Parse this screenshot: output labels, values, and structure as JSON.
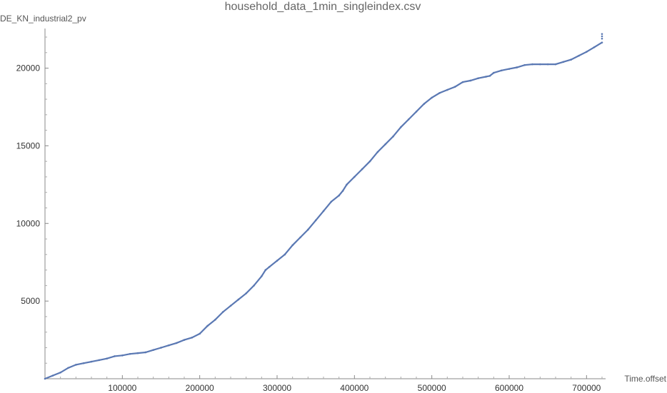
{
  "chart_data": {
    "type": "scatter",
    "title": "household_data_1min_singleindex.csv",
    "xlabel": "Time.offset",
    "ylabel": "DE_KN_industrial2_pv",
    "xlim": [
      0,
      720000
    ],
    "ylim": [
      0,
      22000
    ],
    "xticks": [
      {
        "value": 100000,
        "label": "100000"
      },
      {
        "value": 200000,
        "label": "200000"
      },
      {
        "value": 300000,
        "label": "300000"
      },
      {
        "value": 400000,
        "label": "400000"
      },
      {
        "value": 500000,
        "label": "500000"
      },
      {
        "value": 600000,
        "label": "600000"
      },
      {
        "value": 700000,
        "label": "700000"
      }
    ],
    "yticks": [
      {
        "value": 5000,
        "label": "5000"
      },
      {
        "value": 10000,
        "label": "10000"
      },
      {
        "value": 15000,
        "label": "15000"
      },
      {
        "value": 20000,
        "label": "20000"
      }
    ],
    "grid": false,
    "color": "#5a78b3",
    "series": [
      {
        "x": [
          0,
          10000,
          20000,
          30000,
          40000,
          50000,
          60000,
          70000,
          80000,
          90000,
          100000,
          110000,
          120000,
          130000,
          140000,
          150000,
          160000,
          170000,
          180000,
          190000,
          200000,
          210000,
          220000,
          230000,
          240000,
          250000,
          260000,
          270000,
          280000,
          285000,
          290000,
          300000,
          310000,
          320000,
          330000,
          340000,
          350000,
          360000,
          370000,
          380000,
          385000,
          390000,
          400000,
          410000,
          420000,
          430000,
          440000,
          450000,
          460000,
          470000,
          480000,
          490000,
          500000,
          510000,
          520000,
          530000,
          540000,
          550000,
          560000,
          570000,
          575000,
          580000,
          590000,
          600000,
          610000,
          620000,
          630000,
          640000,
          650000,
          660000,
          670000,
          680000,
          690000,
          700000,
          710000,
          720000
        ],
        "y": [
          0,
          200,
          400,
          700,
          900,
          1000,
          1100,
          1200,
          1300,
          1450,
          1500,
          1600,
          1650,
          1700,
          1850,
          2000,
          2150,
          2300,
          2500,
          2650,
          2900,
          3400,
          3800,
          4300,
          4700,
          5100,
          5500,
          6000,
          6600,
          7000,
          7200,
          7600,
          8000,
          8600,
          9100,
          9600,
          10200,
          10800,
          11400,
          11800,
          12100,
          12500,
          13000,
          13500,
          14000,
          14600,
          15100,
          15600,
          16200,
          16700,
          17200,
          17700,
          18100,
          18400,
          18600,
          18800,
          19100,
          19200,
          19350,
          19450,
          19500,
          19700,
          19850,
          19950,
          20050,
          20200,
          20250,
          20250,
          20250,
          20250,
          20400,
          20550,
          20800,
          21050,
          21350,
          21650
        ]
      }
    ],
    "outliers": {
      "x": [
        720000,
        720000,
        720000
      ],
      "y": [
        21900,
        22050,
        22200
      ]
    }
  }
}
